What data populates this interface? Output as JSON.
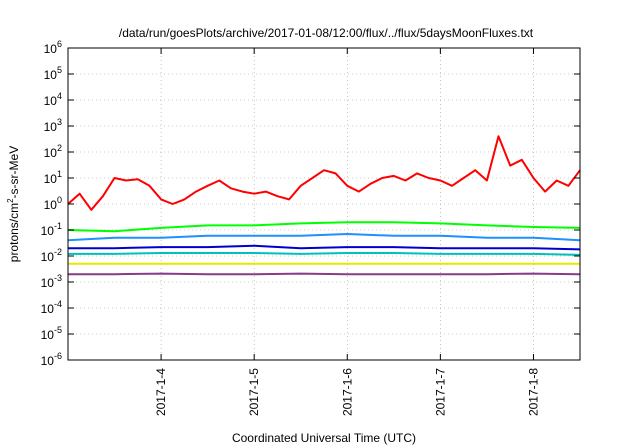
{
  "chart_data": {
    "type": "line",
    "title": "/data/run/goesPlots/archive/2017-01-08/12:00/flux/../flux/5daysMoonFluxes.txt",
    "xlabel": "Coordinated Universal Time (UTC)",
    "ylabel": "protons/cm2-s-sr-MeV",
    "ylabel_base": "protons/cm",
    "ylabel_sup": "2",
    "ylabel_rest": "-s-sr-MeV",
    "yscale": "log",
    "ylim": [
      1e-06,
      1000000.0
    ],
    "xlim": [
      "2017-01-03 00:00",
      "2017-01-08 12:00"
    ],
    "grid": true,
    "legend": "none",
    "y_ticks": [
      {
        "exp": "-6",
        "value": 1e-06
      },
      {
        "exp": "-5",
        "value": 1e-05
      },
      {
        "exp": "-4",
        "value": 0.0001
      },
      {
        "exp": "-3",
        "value": 0.001
      },
      {
        "exp": "-2",
        "value": 0.01
      },
      {
        "exp": "-1",
        "value": 0.1
      },
      {
        "exp": "0",
        "value": 1
      },
      {
        "exp": "1",
        "value": 10.0
      },
      {
        "exp": "2",
        "value": 100.0
      },
      {
        "exp": "3",
        "value": 1000.0
      },
      {
        "exp": "4",
        "value": 10000.0
      },
      {
        "exp": "5",
        "value": 100000.0
      },
      {
        "exp": "6",
        "value": 1000000.0
      }
    ],
    "y_tick_base": "10",
    "x_ticks": [
      {
        "label": "2017-1-4",
        "date": "2017-01-04"
      },
      {
        "label": "2017-1-5",
        "date": "2017-01-05"
      },
      {
        "label": "2017-1-6",
        "date": "2017-01-06"
      },
      {
        "label": "2017-1-7",
        "date": "2017-01-07"
      },
      {
        "label": "2017-1-8",
        "date": "2017-01-08"
      }
    ],
    "series": [
      {
        "color": "#ff0000",
        "x": [
          "2017-01-03 00:00",
          "2017-01-03 03:00",
          "2017-01-03 06:00",
          "2017-01-03 09:00",
          "2017-01-03 12:00",
          "2017-01-03 15:00",
          "2017-01-03 18:00",
          "2017-01-03 21:00",
          "2017-01-04 00:00",
          "2017-01-04 03:00",
          "2017-01-04 06:00",
          "2017-01-04 09:00",
          "2017-01-04 12:00",
          "2017-01-04 15:00",
          "2017-01-04 18:00",
          "2017-01-04 21:00",
          "2017-01-05 00:00",
          "2017-01-05 03:00",
          "2017-01-05 06:00",
          "2017-01-05 09:00",
          "2017-01-05 12:00",
          "2017-01-05 15:00",
          "2017-01-05 18:00",
          "2017-01-05 21:00",
          "2017-01-06 00:00",
          "2017-01-06 03:00",
          "2017-01-06 06:00",
          "2017-01-06 09:00",
          "2017-01-06 12:00",
          "2017-01-06 15:00",
          "2017-01-06 18:00",
          "2017-01-06 21:00",
          "2017-01-07 00:00",
          "2017-01-07 03:00",
          "2017-01-07 06:00",
          "2017-01-07 09:00",
          "2017-01-07 12:00",
          "2017-01-07 15:00",
          "2017-01-07 18:00",
          "2017-01-07 21:00",
          "2017-01-08 00:00",
          "2017-01-08 03:00",
          "2017-01-08 06:00",
          "2017-01-08 09:00",
          "2017-01-08 12:00"
        ],
        "y": [
          1.0,
          2.5,
          0.6,
          2.0,
          10,
          8,
          9,
          5,
          1.5,
          1.0,
          1.5,
          3,
          5,
          8,
          4,
          3,
          2.5,
          3,
          2,
          1.5,
          5,
          10,
          20,
          15,
          5,
          3,
          6,
          10,
          12,
          8,
          15,
          10,
          8,
          5,
          10,
          20,
          8,
          400,
          30,
          50,
          10,
          3,
          8,
          5,
          20
        ]
      },
      {
        "color": "#00ff00",
        "x": [
          "2017-01-03 00:00",
          "2017-01-03 12:00",
          "2017-01-04 00:00",
          "2017-01-04 12:00",
          "2017-01-05 00:00",
          "2017-01-05 12:00",
          "2017-01-06 00:00",
          "2017-01-06 12:00",
          "2017-01-07 00:00",
          "2017-01-07 12:00",
          "2017-01-08 00:00",
          "2017-01-08 12:00"
        ],
        "y": [
          0.1,
          0.09,
          0.12,
          0.15,
          0.15,
          0.18,
          0.2,
          0.2,
          0.18,
          0.15,
          0.13,
          0.12
        ]
      },
      {
        "color": "#1e90ff",
        "x": [
          "2017-01-03 00:00",
          "2017-01-03 12:00",
          "2017-01-04 00:00",
          "2017-01-04 12:00",
          "2017-01-05 00:00",
          "2017-01-05 12:00",
          "2017-01-06 00:00",
          "2017-01-06 12:00",
          "2017-01-07 00:00",
          "2017-01-07 12:00",
          "2017-01-08 00:00",
          "2017-01-08 12:00"
        ],
        "y": [
          0.04,
          0.05,
          0.05,
          0.06,
          0.06,
          0.06,
          0.07,
          0.06,
          0.06,
          0.05,
          0.05,
          0.04
        ]
      },
      {
        "color": "#0000cd",
        "x": [
          "2017-01-03 00:00",
          "2017-01-03 12:00",
          "2017-01-04 00:00",
          "2017-01-04 12:00",
          "2017-01-05 00:00",
          "2017-01-05 12:00",
          "2017-01-06 00:00",
          "2017-01-06 12:00",
          "2017-01-07 00:00",
          "2017-01-07 12:00",
          "2017-01-08 00:00",
          "2017-01-08 12:00"
        ],
        "y": [
          0.02,
          0.02,
          0.022,
          0.022,
          0.025,
          0.02,
          0.022,
          0.022,
          0.02,
          0.02,
          0.02,
          0.018
        ]
      },
      {
        "color": "#00bfbf",
        "x": [
          "2017-01-03 00:00",
          "2017-01-03 12:00",
          "2017-01-04 00:00",
          "2017-01-04 12:00",
          "2017-01-05 00:00",
          "2017-01-05 12:00",
          "2017-01-06 00:00",
          "2017-01-06 12:00",
          "2017-01-07 00:00",
          "2017-01-07 12:00",
          "2017-01-08 00:00",
          "2017-01-08 12:00"
        ],
        "y": [
          0.012,
          0.012,
          0.013,
          0.013,
          0.013,
          0.012,
          0.013,
          0.013,
          0.012,
          0.012,
          0.012,
          0.011
        ]
      },
      {
        "color": "#e8e800",
        "x": [
          "2017-01-03 00:00",
          "2017-01-03 12:00",
          "2017-01-04 00:00",
          "2017-01-04 12:00",
          "2017-01-05 00:00",
          "2017-01-05 12:00",
          "2017-01-06 00:00",
          "2017-01-06 12:00",
          "2017-01-07 00:00",
          "2017-01-07 12:00",
          "2017-01-08 00:00",
          "2017-01-08 12:00"
        ],
        "y": [
          0.005,
          0.005,
          0.005,
          0.005,
          0.005,
          0.005,
          0.005,
          0.005,
          0.005,
          0.005,
          0.005,
          0.005
        ]
      },
      {
        "color": "#8b3a8b",
        "x": [
          "2017-01-03 00:00",
          "2017-01-03 12:00",
          "2017-01-04 00:00",
          "2017-01-04 12:00",
          "2017-01-05 00:00",
          "2017-01-05 12:00",
          "2017-01-06 00:00",
          "2017-01-06 12:00",
          "2017-01-07 00:00",
          "2017-01-07 12:00",
          "2017-01-08 00:00",
          "2017-01-08 12:00"
        ],
        "y": [
          0.002,
          0.002,
          0.0021,
          0.002,
          0.002,
          0.0021,
          0.002,
          0.002,
          0.002,
          0.002,
          0.0021,
          0.002
        ]
      }
    ]
  }
}
